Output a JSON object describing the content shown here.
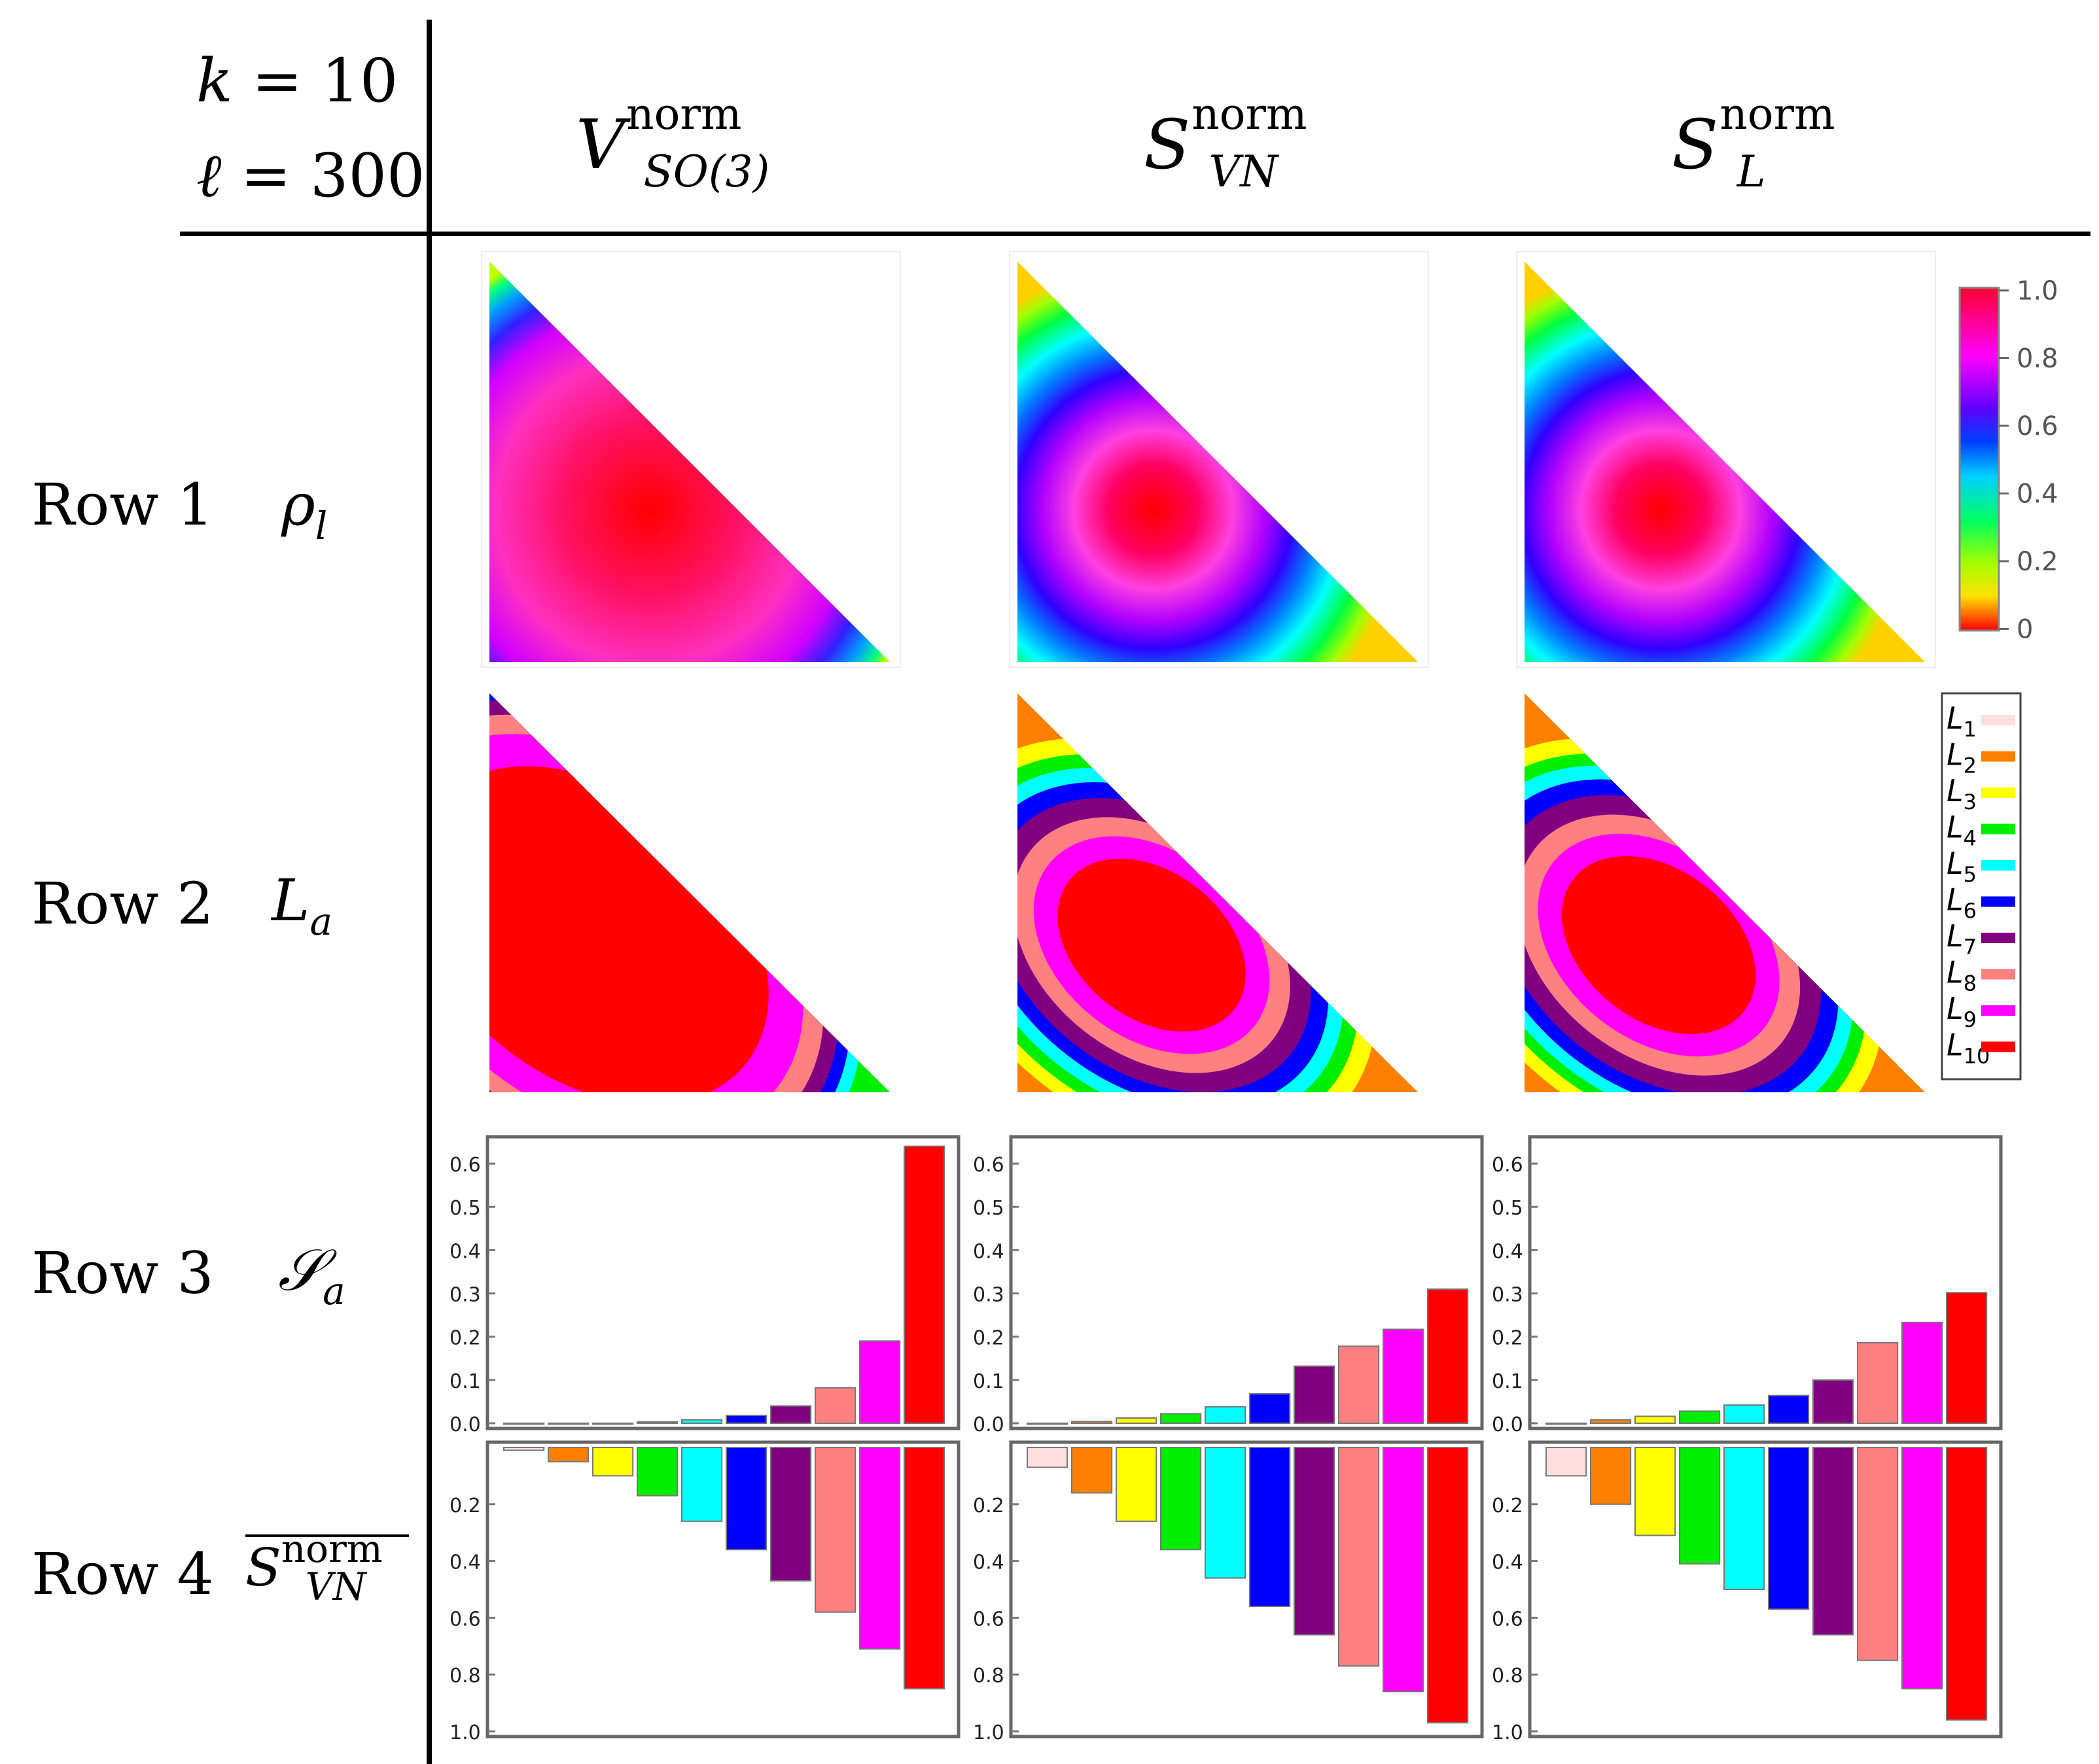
{
  "params": {
    "k_label": "k = 10",
    "ell_label": "ℓ = 300",
    "k": "k",
    "k_val": "10",
    "ell": "ℓ",
    "ell_val": "300"
  },
  "columns": [
    {
      "symbol": "V",
      "sup": "norm",
      "sub": "SO(3)"
    },
    {
      "symbol": "S",
      "sup": "norm",
      "sub": "VN"
    },
    {
      "symbol": "S",
      "sup": "norm",
      "sub": "L"
    }
  ],
  "rows": [
    {
      "label": "Row 1",
      "symbol": "ρ",
      "sub": "l"
    },
    {
      "label": "Row 2",
      "symbol": "L",
      "sub": "a"
    },
    {
      "label": "Row 3",
      "symbol": "𝒮",
      "sub": "a"
    },
    {
      "label": "Row 4",
      "symbol": "S",
      "sup": "norm",
      "sub": "VN",
      "overline": true
    }
  ],
  "colorbar": {
    "ticks": [
      "1.0",
      "0.8",
      "0.6",
      "0.4",
      "0.2",
      "0"
    ]
  },
  "legend": {
    "labels": [
      "L1",
      "L2",
      "L3",
      "L4",
      "L5",
      "L6",
      "L7",
      "L8",
      "L9",
      "L10"
    ],
    "colors": [
      "#ffdede",
      "#ff8000",
      "#ffff00",
      "#00ee00",
      "#00ffff",
      "#0000ff",
      "#800080",
      "#ff8080",
      "#ff00ff",
      "#ff0000"
    ]
  },
  "chart_data": [
    {
      "type": "bar",
      "panel": "Row 3 / V_SO(3)^norm",
      "categories": [
        "L1",
        "L2",
        "L3",
        "L4",
        "L5",
        "L6",
        "L7",
        "L8",
        "L9",
        "L10"
      ],
      "values": [
        0.0,
        0.0,
        0.0,
        0.003,
        0.008,
        0.018,
        0.04,
        0.082,
        0.19,
        0.64
      ],
      "ylim": [
        0,
        0.65
      ],
      "yticks": [
        "0.0",
        "0.1",
        "0.2",
        "0.3",
        "0.4",
        "0.5",
        "0.6"
      ]
    },
    {
      "type": "bar",
      "panel": "Row 3 / S_VN^norm",
      "categories": [
        "L1",
        "L2",
        "L3",
        "L4",
        "L5",
        "L6",
        "L7",
        "L8",
        "L9",
        "L10"
      ],
      "values": [
        0.0,
        0.004,
        0.012,
        0.022,
        0.038,
        0.068,
        0.132,
        0.178,
        0.217,
        0.31
      ],
      "ylim": [
        0,
        0.65
      ],
      "yticks": [
        "0.0",
        "0.1",
        "0.2",
        "0.3",
        "0.4",
        "0.5",
        "0.6"
      ]
    },
    {
      "type": "bar",
      "panel": "Row 3 / S_L^norm",
      "categories": [
        "L1",
        "L2",
        "L3",
        "L4",
        "L5",
        "L6",
        "L7",
        "L8",
        "L9",
        "L10"
      ],
      "values": [
        0.0,
        0.008,
        0.016,
        0.028,
        0.042,
        0.064,
        0.1,
        0.186,
        0.233,
        0.302
      ],
      "ylim": [
        0,
        0.65
      ],
      "yticks": [
        "0.0",
        "0.1",
        "0.2",
        "0.3",
        "0.4",
        "0.5",
        "0.6"
      ]
    },
    {
      "type": "bar",
      "panel": "Row 4 / V_SO(3)^norm",
      "orientation": "downward",
      "categories": [
        "L1",
        "L2",
        "L3",
        "L4",
        "L5",
        "L6",
        "L7",
        "L8",
        "L9",
        "L10"
      ],
      "values": [
        0.01,
        0.05,
        0.1,
        0.17,
        0.26,
        0.36,
        0.47,
        0.58,
        0.71,
        0.85
      ],
      "ylim": [
        0,
        1.0
      ],
      "yticks": [
        "0.2",
        "0.4",
        "0.6",
        "0.8",
        "1.0"
      ]
    },
    {
      "type": "bar",
      "panel": "Row 4 / S_VN^norm",
      "orientation": "downward",
      "categories": [
        "L1",
        "L2",
        "L3",
        "L4",
        "L5",
        "L6",
        "L7",
        "L8",
        "L9",
        "L10"
      ],
      "values": [
        0.07,
        0.16,
        0.26,
        0.36,
        0.46,
        0.56,
        0.66,
        0.77,
        0.86,
        0.97
      ],
      "ylim": [
        0,
        1.0
      ],
      "yticks": [
        "0.2",
        "0.4",
        "0.6",
        "0.8",
        "1.0"
      ]
    },
    {
      "type": "bar",
      "panel": "Row 4 / S_L^norm",
      "orientation": "downward",
      "categories": [
        "L1",
        "L2",
        "L3",
        "L4",
        "L5",
        "L6",
        "L7",
        "L8",
        "L9",
        "L10"
      ],
      "values": [
        0.1,
        0.2,
        0.31,
        0.41,
        0.5,
        0.57,
        0.66,
        0.75,
        0.85,
        0.96
      ],
      "ylim": [
        0,
        1.0
      ],
      "yticks": [
        "0.2",
        "0.4",
        "0.6",
        "0.8",
        "1.0"
      ]
    }
  ]
}
